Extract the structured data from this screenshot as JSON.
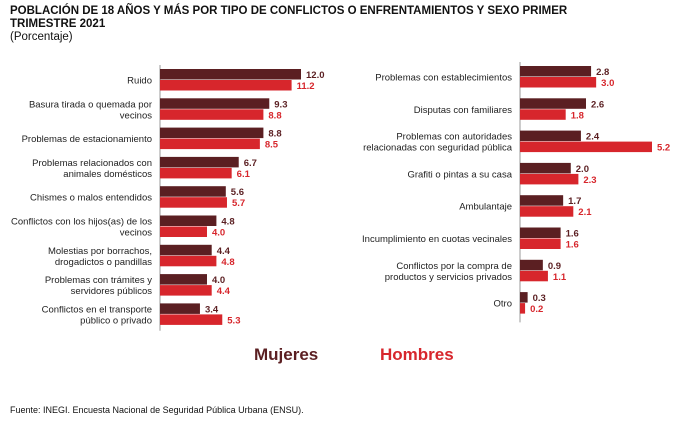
{
  "title": "POBLACIÓN DE 18 AÑOS Y MÁS POR TIPO DE CONFLICTOS O ENFRENTAMIENTOS Y SEXO PRIMER TRIMESTRE 2021",
  "subtitle": "(Porcentaje)",
  "source": "Fuente: INEGI. Encuesta Nacional de Seguridad Pública Urbana (ENSU).",
  "legend": {
    "mujeres": "Mujeres",
    "hombres": "Hombres"
  },
  "colors": {
    "mujeres": "#5b1f22",
    "hombres": "#d7262c",
    "axis": "#9a9a9a",
    "text": "#222222"
  },
  "chart_data": [
    {
      "type": "bar",
      "orientation": "horizontal",
      "categories": [
        [
          "Ruido"
        ],
        [
          "Basura tirada o quemada por",
          "vecinos"
        ],
        [
          "Problemas de estacionamiento"
        ],
        [
          "Problemas relacionados con",
          "animales domésticos"
        ],
        [
          "Chismes o malos entendidos"
        ],
        [
          "Conflictos con los hijos(as) de los",
          "vecinos"
        ],
        [
          "Molestias por borrachos,",
          "drogadictos o pandillas"
        ],
        [
          "Problemas con trámites y",
          "servidores públicos"
        ],
        [
          "Conflictos en el transporte",
          "público o privado"
        ]
      ],
      "series": [
        {
          "name": "Mujeres",
          "values": [
            12.0,
            9.3,
            8.8,
            6.7,
            5.6,
            4.8,
            4.4,
            4.0,
            3.4
          ]
        },
        {
          "name": "Hombres",
          "values": [
            11.2,
            8.8,
            8.5,
            6.1,
            5.7,
            4.0,
            4.8,
            4.4,
            5.3
          ]
        }
      ],
      "xlim": [
        0,
        12.0
      ],
      "data_labels": true,
      "grid": false
    },
    {
      "type": "bar",
      "orientation": "horizontal",
      "categories": [
        [
          "Problemas con establecimientos"
        ],
        [
          "Disputas con familiares"
        ],
        [
          "Problemas con autoridades",
          "relacionadas con seguridad pública"
        ],
        [
          "Grafiti o pintas a su casa"
        ],
        [
          "Ambulantaje"
        ],
        [
          "Incumplimiento en cuotas vecinales"
        ],
        [
          "Conflictos por la compra de",
          "productos y servicios privados"
        ],
        [
          "Otro"
        ]
      ],
      "series": [
        {
          "name": "Mujeres",
          "values": [
            2.8,
            2.6,
            2.4,
            2.0,
            1.7,
            1.6,
            0.9,
            0.3
          ]
        },
        {
          "name": "Hombres",
          "values": [
            3.0,
            1.8,
            5.2,
            2.3,
            2.1,
            1.6,
            1.1,
            0.2
          ]
        }
      ],
      "xlim": [
        0,
        5.2
      ],
      "data_labels": true,
      "grid": false
    }
  ]
}
